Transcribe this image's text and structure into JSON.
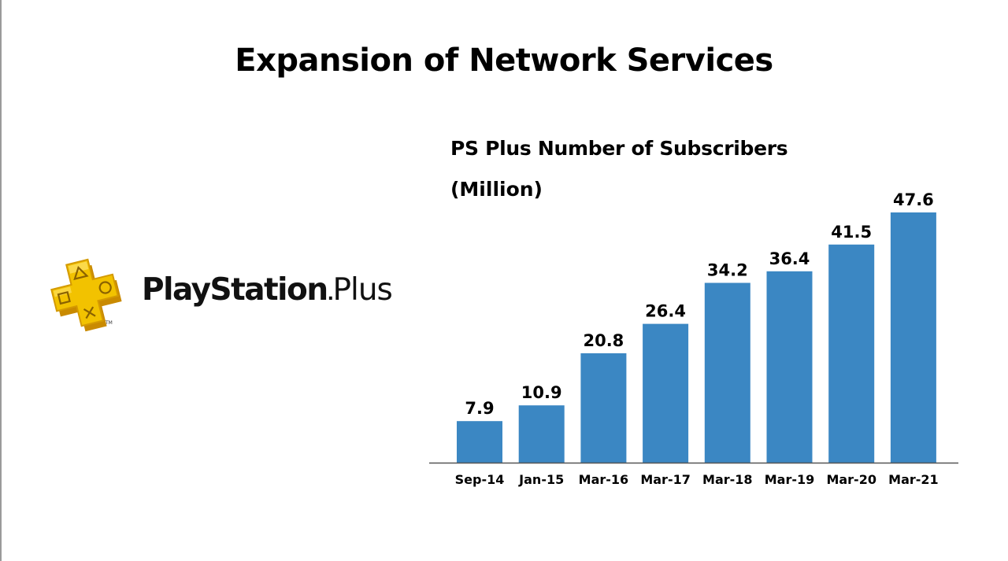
{
  "slide": {
    "title": "Expansion of Network Services"
  },
  "logo": {
    "wordmark_main": "PlayStation",
    "wordmark_dot": ".",
    "wordmark_plus": "Plus",
    "trademark": "TM",
    "icon": "playstation-plus-icon",
    "colors": {
      "gold": "#f2c200",
      "gold_dark": "#d49a00",
      "gold_light": "#ffe36a"
    }
  },
  "chart_data": {
    "type": "bar",
    "title": "PS Plus Number of Subscribers",
    "unit": "(Million)",
    "categories": [
      "Sep-14",
      "Jan-15",
      "Mar-16",
      "Mar-17",
      "Mar-18",
      "Mar-19",
      "Mar-20",
      "Mar-21"
    ],
    "values": [
      7.9,
      10.9,
      20.8,
      26.4,
      34.2,
      36.4,
      41.5,
      47.6
    ],
    "value_labels": [
      "7.9",
      "10.9",
      "20.8",
      "26.4",
      "34.2",
      "36.4",
      "41.5",
      "47.6"
    ],
    "ylim": [
      0,
      47.6
    ],
    "grid": false,
    "legend": "none",
    "colors": {
      "bar": "#3b87c3",
      "axis": "#555555"
    }
  }
}
